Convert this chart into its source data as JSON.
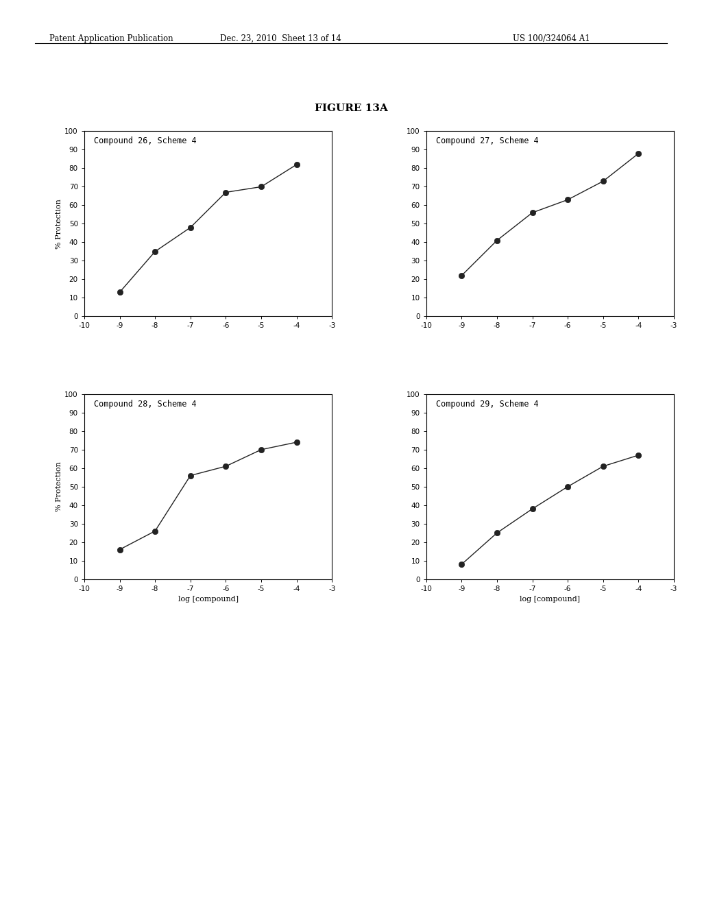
{
  "figure_title": "FIGURE 13A",
  "header_left": "Patent Application Publication",
  "header_date": "Dec. 23, 2010  Sheet 13 of 14",
  "header_right": "US 100/324064 A1",
  "subplot_title_fontsize": 8.5,
  "subplot_label_fontsize": 8,
  "subplot_tick_fontsize": 7.5,
  "plots": [
    {
      "title": "Compound 26, Scheme 4",
      "x": [
        -9,
        -8,
        -7,
        -6,
        -5,
        -4
      ],
      "y": [
        13,
        35,
        48,
        67,
        70,
        82
      ],
      "xlabel": "",
      "ylabel": "% Protection"
    },
    {
      "title": "Compound 27, Scheme 4",
      "x": [
        -9,
        -8,
        -7,
        -6,
        -5,
        -4
      ],
      "y": [
        22,
        41,
        56,
        63,
        73,
        88
      ],
      "xlabel": "",
      "ylabel": ""
    },
    {
      "title": "Compound 28, Scheme 4",
      "x": [
        -9,
        -8,
        -7,
        -6,
        -5,
        -4
      ],
      "y": [
        16,
        26,
        56,
        61,
        70,
        74
      ],
      "xlabel": "log [compound]",
      "ylabel": "% Protection"
    },
    {
      "title": "Compound 29, Scheme 4",
      "x": [
        -9,
        -8,
        -7,
        -6,
        -5,
        -4
      ],
      "y": [
        8,
        25,
        38,
        50,
        61,
        67
      ],
      "xlabel": "log [compound]",
      "ylabel": ""
    }
  ],
  "xlim": [
    -10,
    -3
  ],
  "ylim": [
    0,
    100
  ],
  "xticks": [
    -10,
    -9,
    -8,
    -7,
    -6,
    -5,
    -4,
    -3
  ],
  "yticks": [
    0,
    10,
    20,
    30,
    40,
    50,
    60,
    70,
    80,
    90,
    100
  ],
  "line_color": "#222222",
  "marker_color": "#222222",
  "background_color": "#ffffff"
}
